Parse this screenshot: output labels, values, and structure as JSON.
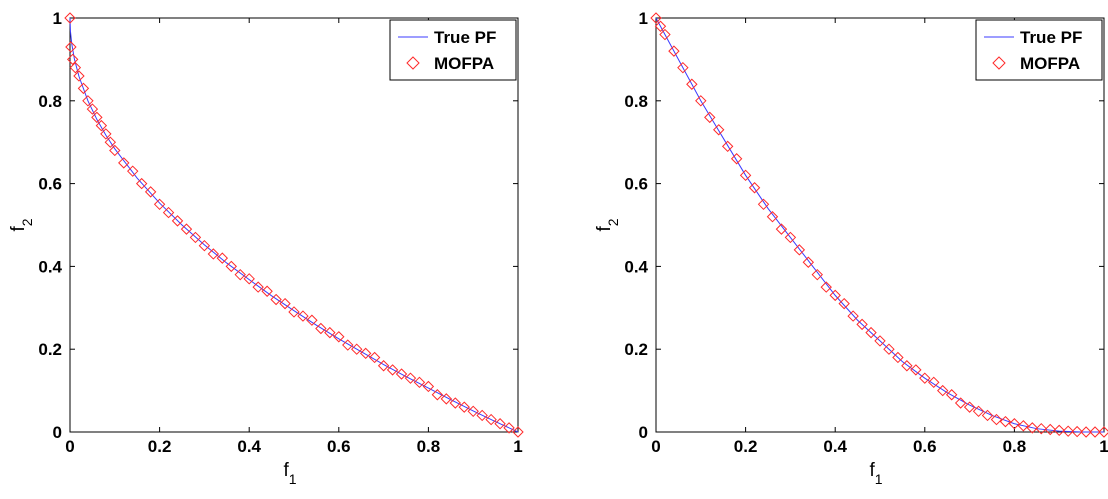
{
  "chart_data": [
    {
      "type": "line",
      "title": "",
      "xlabel": "f",
      "xlabel_sub": "1",
      "ylabel": "f",
      "ylabel_sub": "2",
      "xlim": [
        0,
        1
      ],
      "ylim": [
        0,
        1
      ],
      "xticks": [
        0,
        0.2,
        0.4,
        0.6,
        0.8,
        1
      ],
      "xtick_labels": [
        "0",
        "0.2",
        "0.4",
        "0.6",
        "0.8",
        "1"
      ],
      "yticks": [
        0,
        0.2,
        0.4,
        0.6,
        0.8,
        1
      ],
      "ytick_labels": [
        "0",
        "0.2",
        "0.4",
        "0.6",
        "0.8",
        "1"
      ],
      "grid": false,
      "legend_position": "top-right",
      "series": [
        {
          "name": "True PF",
          "style": "line",
          "color": "#3b3bff",
          "x": [
            0,
            0.001,
            0.004,
            0.01,
            0.02,
            0.04,
            0.06,
            0.08,
            0.1,
            0.15,
            0.2,
            0.25,
            0.3,
            0.35,
            0.4,
            0.45,
            0.5,
            0.55,
            0.6,
            0.65,
            0.7,
            0.75,
            0.8,
            0.85,
            0.9,
            0.95,
            1
          ],
          "y": [
            1,
            0.968,
            0.937,
            0.9,
            0.859,
            0.8,
            0.755,
            0.717,
            0.684,
            0.613,
            0.553,
            0.5,
            0.452,
            0.408,
            0.368,
            0.329,
            0.293,
            0.258,
            0.225,
            0.194,
            0.163,
            0.134,
            0.106,
            0.078,
            0.051,
            0.025,
            0
          ]
        },
        {
          "name": "MOFPA",
          "style": "diamond-markers",
          "color": "#ff2a2a",
          "x": [
            0,
            0.002,
            0.006,
            0.012,
            0.02,
            0.03,
            0.04,
            0.05,
            0.06,
            0.07,
            0.08,
            0.09,
            0.1,
            0.12,
            0.14,
            0.16,
            0.18,
            0.2,
            0.22,
            0.24,
            0.26,
            0.28,
            0.3,
            0.32,
            0.34,
            0.36,
            0.38,
            0.4,
            0.42,
            0.44,
            0.46,
            0.48,
            0.5,
            0.52,
            0.54,
            0.56,
            0.58,
            0.6,
            0.62,
            0.64,
            0.66,
            0.68,
            0.7,
            0.72,
            0.74,
            0.76,
            0.78,
            0.8,
            0.82,
            0.84,
            0.86,
            0.88,
            0.9,
            0.92,
            0.94,
            0.96,
            0.98,
            1
          ],
          "y": [
            1,
            0.93,
            0.9,
            0.88,
            0.86,
            0.83,
            0.8,
            0.78,
            0.76,
            0.74,
            0.72,
            0.7,
            0.68,
            0.65,
            0.63,
            0.6,
            0.58,
            0.55,
            0.53,
            0.51,
            0.49,
            0.47,
            0.45,
            0.43,
            0.42,
            0.4,
            0.38,
            0.37,
            0.35,
            0.34,
            0.32,
            0.31,
            0.29,
            0.28,
            0.27,
            0.25,
            0.24,
            0.23,
            0.21,
            0.2,
            0.19,
            0.18,
            0.16,
            0.15,
            0.14,
            0.13,
            0.12,
            0.11,
            0.09,
            0.08,
            0.07,
            0.06,
            0.05,
            0.04,
            0.03,
            0.02,
            0.01,
            0
          ]
        }
      ]
    },
    {
      "type": "line",
      "title": "",
      "xlabel": "f",
      "xlabel_sub": "1",
      "ylabel": "f",
      "ylabel_sub": "2",
      "xlim": [
        0,
        1
      ],
      "ylim": [
        0,
        1
      ],
      "xticks": [
        0,
        0.2,
        0.4,
        0.6,
        0.8,
        1
      ],
      "xtick_labels": [
        "0",
        "0.2",
        "0.4",
        "0.6",
        "0.8",
        "1"
      ],
      "yticks": [
        0,
        0.2,
        0.4,
        0.6,
        0.8,
        1
      ],
      "ytick_labels": [
        "0",
        "0.2",
        "0.4",
        "0.6",
        "0.8",
        "1"
      ],
      "grid": false,
      "legend_position": "top-right",
      "series": [
        {
          "name": "True PF",
          "style": "line",
          "color": "#3b3bff",
          "x": [
            0,
            0.05,
            0.1,
            0.15,
            0.2,
            0.25,
            0.3,
            0.35,
            0.4,
            0.45,
            0.5,
            0.55,
            0.6,
            0.65,
            0.7,
            0.75,
            0.8,
            0.85,
            0.9,
            0.95,
            1
          ],
          "y": [
            1,
            0.9,
            0.8,
            0.71,
            0.62,
            0.54,
            0.47,
            0.4,
            0.33,
            0.27,
            0.22,
            0.17,
            0.13,
            0.095,
            0.065,
            0.04,
            0.02,
            0.008,
            0.002,
            0,
            0
          ]
        },
        {
          "name": "MOFPA",
          "style": "diamond-markers",
          "color": "#ff2a2a",
          "x": [
            0,
            0.01,
            0.02,
            0.04,
            0.06,
            0.08,
            0.1,
            0.12,
            0.14,
            0.16,
            0.18,
            0.2,
            0.22,
            0.24,
            0.26,
            0.28,
            0.3,
            0.32,
            0.34,
            0.36,
            0.38,
            0.4,
            0.42,
            0.44,
            0.46,
            0.48,
            0.5,
            0.52,
            0.54,
            0.56,
            0.58,
            0.6,
            0.62,
            0.64,
            0.66,
            0.68,
            0.7,
            0.72,
            0.74,
            0.76,
            0.78,
            0.8,
            0.82,
            0.84,
            0.86,
            0.88,
            0.9,
            0.92,
            0.94,
            0.96,
            0.98,
            1
          ],
          "y": [
            1,
            0.98,
            0.96,
            0.92,
            0.88,
            0.84,
            0.8,
            0.76,
            0.73,
            0.69,
            0.66,
            0.62,
            0.59,
            0.55,
            0.52,
            0.49,
            0.47,
            0.44,
            0.41,
            0.38,
            0.35,
            0.33,
            0.31,
            0.28,
            0.26,
            0.24,
            0.22,
            0.2,
            0.18,
            0.16,
            0.15,
            0.13,
            0.12,
            0.1,
            0.09,
            0.07,
            0.06,
            0.05,
            0.04,
            0.03,
            0.025,
            0.02,
            0.015,
            0.01,
            0.008,
            0.006,
            0.004,
            0.002,
            0.001,
            0,
            0,
            0
          ]
        }
      ]
    }
  ]
}
